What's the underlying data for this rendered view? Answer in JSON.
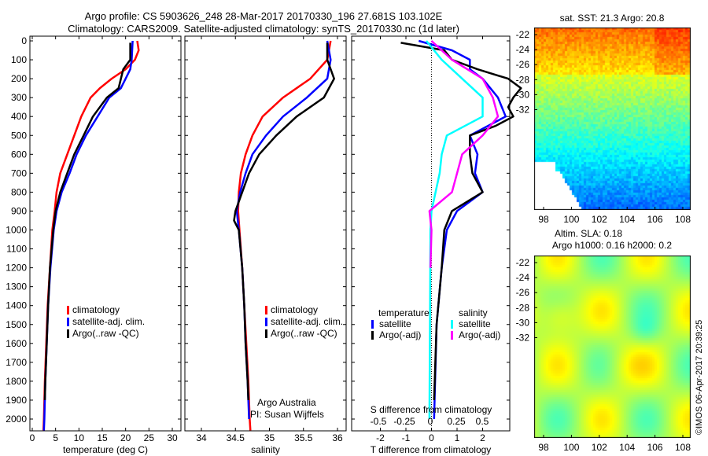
{
  "title_line1": "Argo profile: CS 5903626_248 28-Mar-2017 20170330_196 27.681S 103.102E",
  "title_line2": "Climatology: CARS2009. Satellite-adjusted climatology: synTS_20170330.nc (1d later)",
  "credit": "©IMOS 06-Apr-2017 20:39:25",
  "colors": {
    "climatology": "#ff0000",
    "satellite": "#0000ff",
    "argo": "#000000",
    "sal_satellite": "#00ffff",
    "sal_argo": "#ff00ff"
  },
  "chart_data": [
    {
      "type": "line",
      "name": "temperature",
      "xlabel": "temperature (deg C)",
      "xlim": [
        -0.5,
        31.5
      ],
      "ylim": [
        2060,
        0
      ],
      "xticks": [
        0,
        5,
        10,
        15,
        20,
        25,
        30
      ],
      "yticks": [
        0,
        100,
        200,
        300,
        400,
        500,
        600,
        700,
        800,
        900,
        1000,
        1100,
        1200,
        1300,
        1400,
        1500,
        1600,
        1700,
        1800,
        1900,
        2000
      ],
      "legend": [
        "climatology",
        "satellite-adj. clim.",
        "Argo(..raw -QC)"
      ],
      "series": [
        {
          "name": "climatology",
          "color": "#ff0000",
          "depth": [
            0,
            50,
            100,
            150,
            200,
            250,
            300,
            400,
            500,
            600,
            700,
            800,
            900,
            1000,
            1200,
            1400,
            1600,
            1800,
            2000,
            2060
          ],
          "values": [
            22.5,
            22.8,
            22,
            20,
            17,
            14.5,
            12.5,
            10.5,
            9,
            7.5,
            6,
            5.2,
            4.8,
            4.3,
            3.8,
            3.3,
            3,
            2.7,
            2.5,
            2.4
          ]
        },
        {
          "name": "satellite-adj. clim.",
          "color": "#0000ff",
          "depth": [
            0,
            100,
            150,
            200,
            250,
            300,
            400,
            500,
            600,
            700,
            800,
            900,
            1000,
            1200,
            1400,
            1600,
            1800,
            2000,
            2060
          ],
          "values": [
            21.5,
            21.3,
            21,
            20,
            19,
            16.5,
            14,
            11.5,
            9.5,
            8,
            6.3,
            5.2,
            4.6,
            3.9,
            3.4,
            3.1,
            2.8,
            2.6,
            2.5
          ]
        },
        {
          "name": "Argo(..raw -QC)",
          "color": "#000000",
          "depth": [
            10,
            100,
            150,
            200,
            250,
            300,
            400,
            500,
            600,
            700,
            800,
            900,
            1000,
            1200,
            1400,
            1600,
            1800,
            1900
          ],
          "values": [
            21,
            21,
            19.5,
            19,
            18.5,
            16,
            13,
            11,
            9,
            7.5,
            6,
            5,
            4.5,
            3.8,
            3.4,
            3.1,
            2.8,
            2.7
          ]
        }
      ]
    },
    {
      "type": "line",
      "name": "salinity",
      "xlabel": "salinity",
      "xlim": [
        33.75,
        36.1
      ],
      "ylim": [
        2060,
        0
      ],
      "xticks": [
        34,
        34.5,
        35,
        35.5,
        36
      ],
      "legend": [
        "climatology",
        "satellite-adj. clim.",
        "Argo(..raw -QC)"
      ],
      "annotation": [
        "Argo Australia",
        "PI: Susan Wijffels"
      ],
      "series": [
        {
          "name": "climatology",
          "color": "#ff0000",
          "depth": [
            0,
            100,
            200,
            300,
            400,
            500,
            600,
            700,
            800,
            900,
            1000,
            1200,
            1400,
            1600,
            1800,
            2000,
            2060
          ],
          "values": [
            35.9,
            35.85,
            35.6,
            35.2,
            34.9,
            34.75,
            34.65,
            34.58,
            34.55,
            34.54,
            34.56,
            34.6,
            34.63,
            34.66,
            34.69,
            34.71,
            34.72
          ]
        },
        {
          "name": "satellite-adj. clim.",
          "color": "#0000ff",
          "depth": [
            0,
            100,
            200,
            300,
            400,
            500,
            600,
            700,
            800,
            900,
            1000,
            1200,
            1400,
            1600,
            1800,
            2000
          ],
          "values": [
            35.85,
            35.9,
            35.85,
            35.55,
            35.2,
            34.95,
            34.75,
            34.65,
            34.57,
            34.52,
            34.55,
            34.6,
            34.63,
            34.65,
            34.68,
            34.7
          ]
        },
        {
          "name": "Argo(..raw -QC)",
          "color": "#000000",
          "depth": [
            10,
            100,
            200,
            300,
            400,
            500,
            600,
            700,
            800,
            900,
            950,
            1000,
            1200,
            1400,
            1600,
            1800,
            1900
          ],
          "values": [
            35.85,
            35.85,
            35.95,
            35.8,
            35.4,
            35.1,
            34.85,
            34.7,
            34.6,
            34.5,
            34.48,
            34.55,
            34.6,
            34.63,
            34.65,
            34.68,
            34.69
          ]
        }
      ]
    },
    {
      "type": "line",
      "name": "difference",
      "xlabel": "T difference from climatology",
      "xlabel2": "S difference from climatology",
      "xlim": [
        -3.1,
        3.1
      ],
      "ylim": [
        2060,
        0
      ],
      "xticks": [
        -2,
        -1,
        0,
        1,
        2
      ],
      "xticks_s": [
        -0.5,
        -0.25,
        0,
        0.25,
        0.5
      ],
      "legend_temp_title": "temperature",
      "legend_sal_title": "salinity",
      "legend_temp": [
        "satellite",
        "Argo(-adj)"
      ],
      "legend_sal": [
        "satellite",
        "Argo(-adj)"
      ],
      "series": [
        {
          "name": "temperature satellite",
          "units": "T",
          "color": "#0000ff",
          "depth": [
            0,
            50,
            100,
            150,
            200,
            300,
            400,
            500,
            600,
            700,
            800,
            900,
            1000,
            1200,
            1500,
            2000
          ],
          "values": [
            -0.5,
            0.8,
            1.5,
            1.5,
            2,
            2.6,
            2.9,
            1.5,
            1.8,
            1.7,
            2,
            1,
            0.6,
            0.4,
            0.2,
            0.1
          ]
        },
        {
          "name": "temperature Argo(-adj)",
          "units": "T",
          "color": "#000000",
          "depth": [
            10,
            50,
            100,
            150,
            200,
            250,
            300,
            350,
            400,
            450,
            500,
            600,
            700,
            800,
            900,
            1000,
            1200,
            1500,
            1900
          ],
          "values": [
            -1.2,
            0.5,
            0.8,
            1.8,
            3,
            3.5,
            3.2,
            3,
            3.2,
            2.5,
            1.5,
            1.5,
            1.6,
            2,
            0.8,
            0.5,
            0.4,
            0.2,
            0.1
          ]
        },
        {
          "name": "salinity satellite",
          "units": "S",
          "color": "#00ffff",
          "depth": [
            0,
            100,
            200,
            300,
            400,
            500,
            600,
            700,
            900,
            1000,
            2000
          ],
          "values": [
            -0.05,
            0.1,
            0.3,
            0.5,
            0.5,
            0.15,
            0.1,
            0.08,
            0,
            -0.01,
            -0.02
          ]
        },
        {
          "name": "salinity Argo(-adj)",
          "units": "S",
          "color": "#ff00ff",
          "depth": [
            0,
            100,
            200,
            300,
            400,
            500,
            600,
            800,
            900,
            1000,
            1200
          ],
          "values": [
            0,
            0.2,
            0.5,
            0.6,
            0.65,
            0.5,
            0.3,
            0.2,
            -0.02,
            0,
            -0.01
          ]
        }
      ]
    },
    {
      "type": "heatmap",
      "name": "sst_map",
      "title": "sat. SST: 21.3 Argo: 20.8",
      "xticks": [
        98,
        100,
        102,
        104,
        106,
        108
      ],
      "yticks": [
        -22,
        -24,
        -26,
        -28,
        -30,
        -32
      ]
    },
    {
      "type": "heatmap",
      "name": "sla_map",
      "title": "Altim. SLA: 0.18",
      "subtitle": "Argo h1000: 0.16 h2000: 0.2",
      "xticks": [
        98,
        100,
        102,
        104,
        106,
        108
      ],
      "yticks": [
        -22,
        -24,
        -26,
        -28,
        -30,
        -32
      ]
    }
  ]
}
